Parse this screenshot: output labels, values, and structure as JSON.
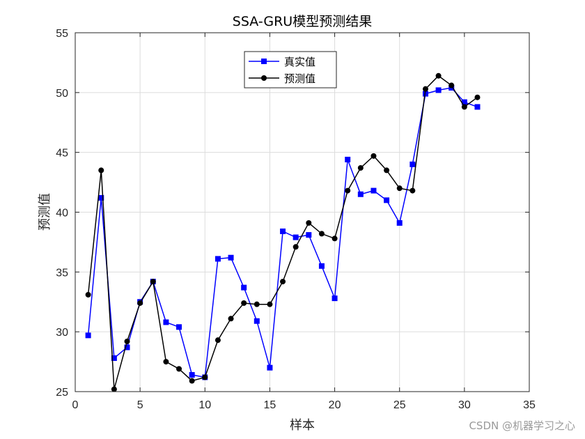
{
  "chart_data": {
    "type": "line",
    "title": "SSA-GRU模型预测结果",
    "xlabel": "样本",
    "ylabel": "预测值",
    "xlim": [
      0,
      35
    ],
    "ylim": [
      25,
      55
    ],
    "xticks": [
      0,
      5,
      10,
      15,
      20,
      25,
      30,
      35
    ],
    "yticks": [
      25,
      30,
      35,
      40,
      45,
      50,
      55
    ],
    "grid": true,
    "legend_position": "top-center",
    "x": [
      1,
      2,
      3,
      4,
      5,
      6,
      7,
      8,
      9,
      10,
      11,
      12,
      13,
      14,
      15,
      16,
      17,
      18,
      19,
      20,
      21,
      22,
      23,
      24,
      25,
      26,
      27,
      28,
      29,
      30,
      31
    ],
    "series": [
      {
        "name": "真实值",
        "color": "#0000ff",
        "marker": "square",
        "values": [
          29.7,
          41.2,
          27.8,
          28.7,
          32.5,
          34.2,
          30.8,
          30.4,
          26.4,
          26.2,
          36.1,
          36.2,
          33.7,
          30.9,
          27.0,
          38.4,
          37.9,
          38.1,
          35.5,
          32.8,
          44.4,
          41.5,
          41.8,
          41.0,
          39.1,
          44.0,
          49.9,
          50.2,
          50.4,
          49.2,
          48.8
        ]
      },
      {
        "name": "预测值",
        "color": "#000000",
        "marker": "circle",
        "values": [
          33.1,
          43.5,
          25.2,
          29.2,
          32.4,
          34.2,
          27.5,
          26.9,
          25.9,
          26.2,
          29.3,
          31.1,
          32.4,
          32.3,
          32.3,
          34.2,
          37.1,
          39.1,
          38.2,
          37.8,
          41.8,
          43.7,
          44.7,
          43.5,
          42.0,
          41.8,
          50.3,
          51.4,
          50.6,
          48.8,
          49.6
        ]
      }
    ]
  },
  "watermark": "CSDN @机器学习之心"
}
